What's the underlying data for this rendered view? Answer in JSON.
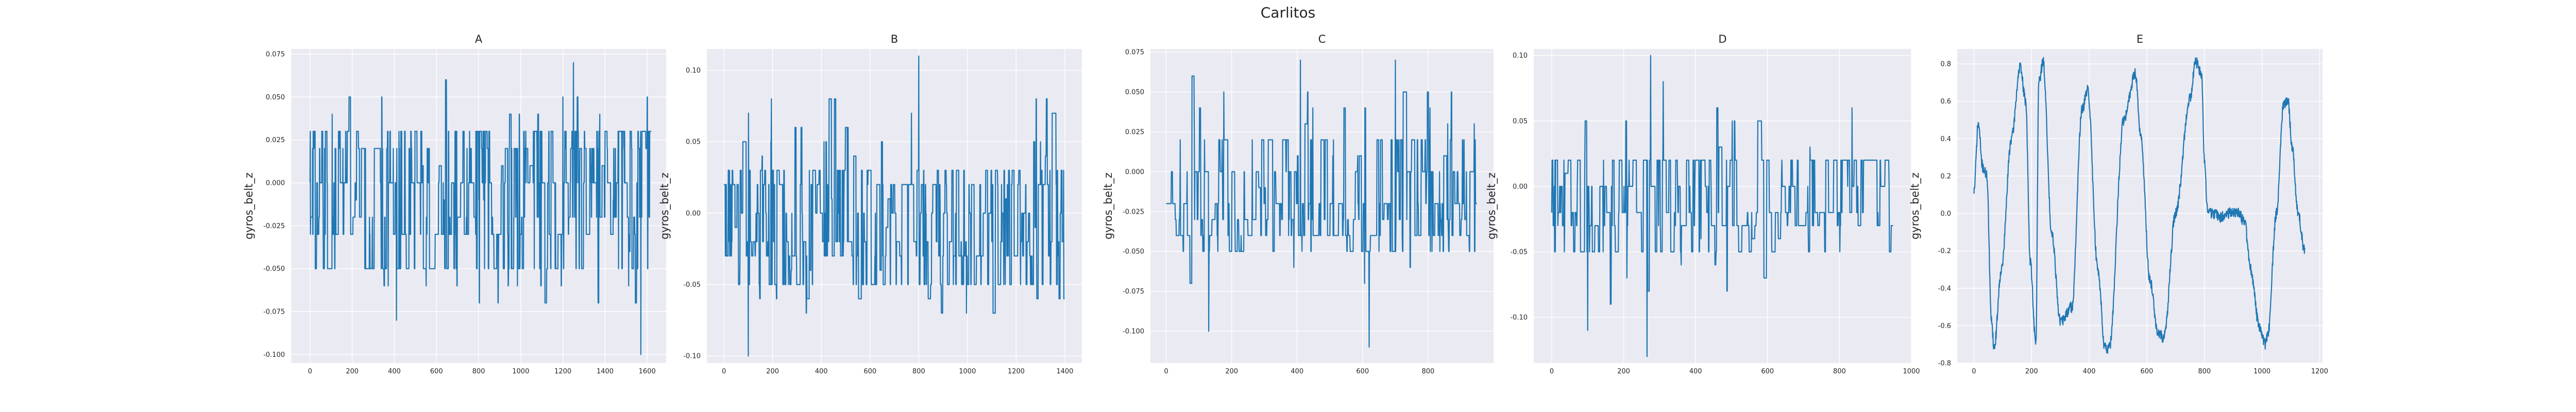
{
  "figure": {
    "title": "Carlitos"
  },
  "chart_data": [
    {
      "type": "line",
      "title": "A",
      "ylabel": "gyros_belt_z",
      "xlim": [
        -90,
        1690
      ],
      "ylim": [
        -0.105,
        0.078
      ],
      "xticks": [
        0,
        200,
        400,
        600,
        800,
        1000,
        1200,
        1400,
        1600
      ],
      "yticks": [
        -0.1,
        -0.075,
        -0.05,
        -0.025,
        0.0,
        0.025,
        0.05,
        0.075
      ],
      "ytick_labels": [
        "-0.100",
        "-0.075",
        "-0.050",
        "-0.025",
        "0.000",
        "0.025",
        "0.050",
        "0.075"
      ],
      "series": [
        {
          "n_points": 1620,
          "seed": 11,
          "levels": [
            -0.03,
            -0.02,
            0.0,
            -0.05,
            0.02,
            0.03
          ],
          "range": [
            -0.1,
            0.07
          ],
          "spikes": [
            [
              1250,
              0.07
            ],
            [
              1570,
              -0.1
            ],
            [
              410,
              -0.08
            ],
            [
              1200,
              0.05
            ]
          ]
        }
      ]
    },
    {
      "type": "line",
      "title": "B",
      "ylabel": "gyros_belt_z",
      "xlim": [
        -70,
        1470
      ],
      "ylim": [
        -0.105,
        0.115
      ],
      "xticks": [
        0,
        200,
        400,
        600,
        800,
        1000,
        1200,
        1400
      ],
      "yticks": [
        -0.1,
        -0.05,
        0.0,
        0.05,
        0.1
      ],
      "ytick_labels": [
        "-0.10",
        "-0.05",
        "0.00",
        "0.05",
        "0.10"
      ],
      "series": [
        {
          "n_points": 1400,
          "seed": 23,
          "levels": [
            -0.02,
            0.0,
            -0.03,
            0.02,
            -0.05,
            0.03
          ],
          "range": [
            -0.1,
            0.11
          ],
          "spikes": [
            [
              800,
              0.11
            ],
            [
              100,
              -0.1
            ],
            [
              770,
              0.07
            ],
            [
              1300,
              0.05
            ]
          ]
        }
      ]
    },
    {
      "type": "line",
      "title": "C",
      "ylabel": "gyros_belt_z",
      "xlim": [
        -48,
        1000
      ],
      "ylim": [
        -0.12,
        0.077
      ],
      "xticks": [
        0,
        200,
        400,
        600,
        800
      ],
      "yticks": [
        -0.1,
        -0.075,
        -0.05,
        -0.025,
        0.0,
        0.025,
        0.05,
        0.075
      ],
      "ytick_labels": [
        "-0.100",
        "-0.075",
        "-0.050",
        "-0.025",
        "0.000",
        "0.025",
        "0.050",
        "0.075"
      ],
      "series": [
        {
          "n_points": 950,
          "seed": 37,
          "levels": [
            -0.02,
            0.0,
            -0.03,
            0.02,
            -0.05,
            -0.04
          ],
          "range": [
            -0.11,
            0.07
          ],
          "spikes": [
            [
              410,
              0.07
            ],
            [
              700,
              0.07
            ],
            [
              620,
              -0.11
            ],
            [
              130,
              -0.1
            ],
            [
              860,
              0.03
            ]
          ]
        }
      ]
    },
    {
      "type": "line",
      "title": "D",
      "ylabel": "gyros_belt_z",
      "xlim": [
        -50,
        1000
      ],
      "ylim": [
        -0.135,
        0.105
      ],
      "xticks": [
        0,
        200,
        400,
        600,
        800,
        1000
      ],
      "yticks": [
        -0.1,
        -0.05,
        0.0,
        0.05,
        0.1
      ],
      "ytick_labels": [
        "-0.10",
        "-0.05",
        "0.00",
        "0.05",
        "0.10"
      ],
      "series": [
        {
          "n_points": 950,
          "seed": 53,
          "levels": [
            -0.02,
            0.0,
            -0.03,
            0.02,
            -0.05
          ],
          "range": [
            -0.13,
            0.1
          ],
          "spikes": [
            [
              275,
              0.1
            ],
            [
              265,
              -0.13
            ],
            [
              310,
              0.08
            ],
            [
              100,
              -0.11
            ]
          ]
        }
      ]
    },
    {
      "type": "line",
      "title": "E",
      "ylabel": "gyros_belt_z",
      "xlim": [
        -58,
        1210
      ],
      "ylim": [
        -0.8,
        0.88
      ],
      "xticks": [
        0,
        200,
        400,
        600,
        800,
        1000,
        1200
      ],
      "yticks": [
        -0.8,
        -0.6,
        -0.4,
        -0.2,
        0.0,
        0.2,
        0.4,
        0.6,
        0.8
      ],
      "ytick_labels": [
        "-0.8",
        "-0.6",
        "-0.4",
        "-0.2",
        "0.0",
        "0.2",
        "0.4",
        "0.6",
        "0.8"
      ],
      "series": [
        {
          "n_points": 1150,
          "seed": 71,
          "anchors": [
            [
              0,
              0.12
            ],
            [
              15,
              0.48
            ],
            [
              30,
              0.25
            ],
            [
              45,
              0.2
            ],
            [
              60,
              -0.55
            ],
            [
              70,
              -0.72
            ],
            [
              95,
              -0.3
            ],
            [
              130,
              0.4
            ],
            [
              160,
              0.78
            ],
            [
              180,
              0.6
            ],
            [
              195,
              -0.25
            ],
            [
              215,
              -0.7
            ],
            [
              225,
              0.7
            ],
            [
              240,
              0.81
            ],
            [
              270,
              -0.1
            ],
            [
              300,
              -0.58
            ],
            [
              340,
              -0.5
            ],
            [
              375,
              0.55
            ],
            [
              395,
              0.66
            ],
            [
              430,
              -0.3
            ],
            [
              455,
              -0.72
            ],
            [
              470,
              -0.72
            ],
            [
              520,
              0.5
            ],
            [
              560,
              0.75
            ],
            [
              580,
              0.4
            ],
            [
              610,
              -0.35
            ],
            [
              640,
              -0.65
            ],
            [
              660,
              -0.66
            ],
            [
              700,
              0.0
            ],
            [
              750,
              0.62
            ],
            [
              770,
              0.81
            ],
            [
              790,
              0.75
            ],
            [
              800,
              0.3
            ],
            [
              810,
              0.02
            ],
            [
              830,
              0.0
            ],
            [
              860,
              -0.02
            ],
            [
              880,
              0.0
            ],
            [
              900,
              0.01
            ],
            [
              920,
              0.0
            ],
            [
              940,
              -0.05
            ],
            [
              960,
              -0.3
            ],
            [
              990,
              -0.6
            ],
            [
              1010,
              -0.7
            ],
            [
              1020,
              -0.65
            ],
            [
              1050,
              0.0
            ],
            [
              1075,
              0.58
            ],
            [
              1090,
              0.6
            ],
            [
              1105,
              0.35
            ],
            [
              1125,
              0.0
            ],
            [
              1148,
              -0.2
            ]
          ]
        }
      ]
    }
  ]
}
